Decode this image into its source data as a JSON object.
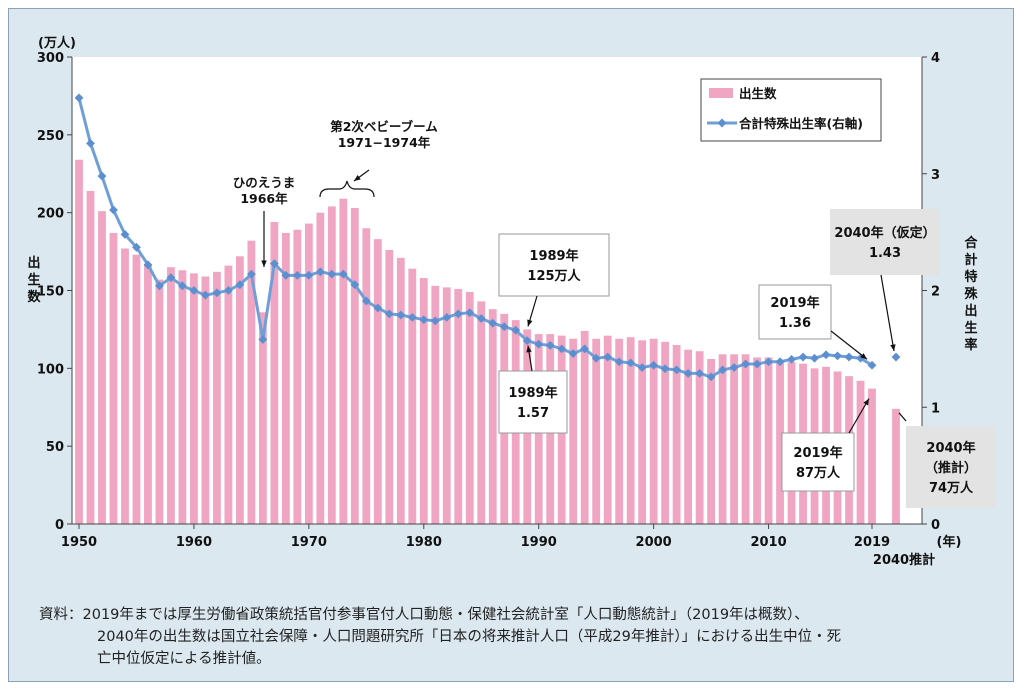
{
  "chart_data": {
    "type": "bar+line",
    "left_unit": "(万人)",
    "right_unit": "",
    "left_axis_label": [
      "出",
      "生",
      "数"
    ],
    "right_axis_label": [
      "合",
      "計",
      "特",
      "殊",
      "出",
      "生",
      "率"
    ],
    "x_unit": "(年)",
    "x_ticks": [
      "1950",
      "1960",
      "1970",
      "1980",
      "1990",
      "2000",
      "2010",
      "2019"
    ],
    "x_tick_2040": "2040推計",
    "ylim_left": [
      0,
      300
    ],
    "ylim_right": [
      0,
      4
    ],
    "y_ticks_left": [
      "0",
      "50",
      "100",
      "150",
      "200",
      "250",
      "300"
    ],
    "y_ticks_right": [
      "0",
      "1",
      "2",
      "3",
      "4"
    ],
    "grid": false,
    "legend_position": "top-right",
    "colors": {
      "bars": "#f0a6c2",
      "line": "#6f9fd6",
      "line_marker": "#5b8fd0"
    },
    "series": [
      {
        "name": "出生数",
        "kind": "bar",
        "x": [
          1950,
          1951,
          1952,
          1953,
          1954,
          1955,
          1956,
          1957,
          1958,
          1959,
          1960,
          1961,
          1962,
          1963,
          1964,
          1965,
          1966,
          1967,
          1968,
          1969,
          1970,
          1971,
          1972,
          1973,
          1974,
          1975,
          1976,
          1977,
          1978,
          1979,
          1980,
          1981,
          1982,
          1983,
          1984,
          1985,
          1986,
          1987,
          1988,
          1989,
          1990,
          1991,
          1992,
          1993,
          1994,
          1995,
          1996,
          1997,
          1998,
          1999,
          2000,
          2001,
          2002,
          2003,
          2004,
          2005,
          2006,
          2007,
          2008,
          2009,
          2010,
          2011,
          2012,
          2013,
          2014,
          2015,
          2016,
          2017,
          2018,
          2019,
          2040
        ],
        "values": [
          234,
          214,
          201,
          187,
          177,
          173,
          167,
          157,
          165,
          163,
          161,
          159,
          162,
          166,
          172,
          182,
          136,
          194,
          187,
          189,
          193,
          200,
          204,
          209,
          203,
          190,
          183,
          176,
          171,
          164,
          158,
          153,
          152,
          151,
          149,
          143,
          138,
          135,
          131,
          125,
          122,
          122,
          121,
          119,
          124,
          119,
          121,
          119,
          120,
          118,
          119,
          117,
          115,
          112,
          111,
          106,
          109,
          109,
          109,
          107,
          107,
          105,
          104,
          103,
          100,
          101,
          98,
          95,
          92,
          87,
          74
        ]
      },
      {
        "name": "合計特殊出生率(右軸)",
        "kind": "line",
        "x": [
          1950,
          1951,
          1952,
          1953,
          1954,
          1955,
          1956,
          1957,
          1958,
          1959,
          1960,
          1961,
          1962,
          1963,
          1964,
          1965,
          1966,
          1967,
          1968,
          1969,
          1970,
          1971,
          1972,
          1973,
          1974,
          1975,
          1976,
          1977,
          1978,
          1979,
          1980,
          1981,
          1982,
          1983,
          1984,
          1985,
          1986,
          1987,
          1988,
          1989,
          1990,
          1991,
          1992,
          1993,
          1994,
          1995,
          1996,
          1997,
          1998,
          1999,
          2000,
          2001,
          2002,
          2003,
          2004,
          2005,
          2006,
          2007,
          2008,
          2009,
          2010,
          2011,
          2012,
          2013,
          2014,
          2015,
          2016,
          2017,
          2018,
          2019,
          2040
        ],
        "values": [
          3.65,
          3.26,
          2.98,
          2.69,
          2.48,
          2.37,
          2.22,
          2.04,
          2.11,
          2.04,
          2.0,
          1.96,
          1.98,
          2.0,
          2.05,
          2.14,
          1.58,
          2.23,
          2.13,
          2.13,
          2.13,
          2.16,
          2.14,
          2.14,
          2.05,
          1.91,
          1.85,
          1.8,
          1.79,
          1.77,
          1.75,
          1.74,
          1.77,
          1.8,
          1.81,
          1.76,
          1.72,
          1.69,
          1.66,
          1.57,
          1.54,
          1.53,
          1.5,
          1.46,
          1.5,
          1.42,
          1.43,
          1.39,
          1.38,
          1.34,
          1.36,
          1.33,
          1.32,
          1.29,
          1.29,
          1.26,
          1.32,
          1.34,
          1.37,
          1.37,
          1.39,
          1.39,
          1.41,
          1.43,
          1.42,
          1.45,
          1.44,
          1.43,
          1.42,
          1.36,
          1.43
        ]
      }
    ],
    "annotations": [
      {
        "id": "hinoeuma",
        "lines": [
          "ひのえうま",
          "1966年"
        ]
      },
      {
        "id": "babyboom",
        "lines": [
          "第2次ベビーブーム",
          "1971−1974年"
        ]
      },
      {
        "id": "b1989",
        "lines": [
          "1989年",
          "125万人"
        ],
        "boxed": true,
        "fill": "#ffffff"
      },
      {
        "id": "r1989",
        "lines": [
          "1989年",
          "1.57"
        ],
        "boxed": true,
        "fill": "#ffffff"
      },
      {
        "id": "r2019",
        "lines": [
          "2019年",
          "1.36"
        ],
        "boxed": true,
        "fill": "#ffffff"
      },
      {
        "id": "b2019",
        "lines": [
          "2019年",
          "87万人"
        ],
        "boxed": true,
        "fill": "#ffffff"
      },
      {
        "id": "r2040",
        "lines": [
          "2040年（仮定）",
          "1.43"
        ],
        "boxed": true,
        "fill": "#e3e3e3"
      },
      {
        "id": "b2040",
        "lines": [
          "2040年",
          "（推計）",
          "74万人"
        ],
        "boxed": true,
        "fill": "#e3e3e3"
      }
    ]
  },
  "source_note": {
    "line1": "資料：2019年までは厚生労働省政策統括官付参事官付人口動態・保健社会統計室「人口動態統計」（2019年は概数）、",
    "line2": "2040年の出生数は国立社会保障・人口問題研究所「日本の将来推計人口（平成29年推計）」における出生中位・死",
    "line3": "亡中位仮定による推計値。"
  }
}
